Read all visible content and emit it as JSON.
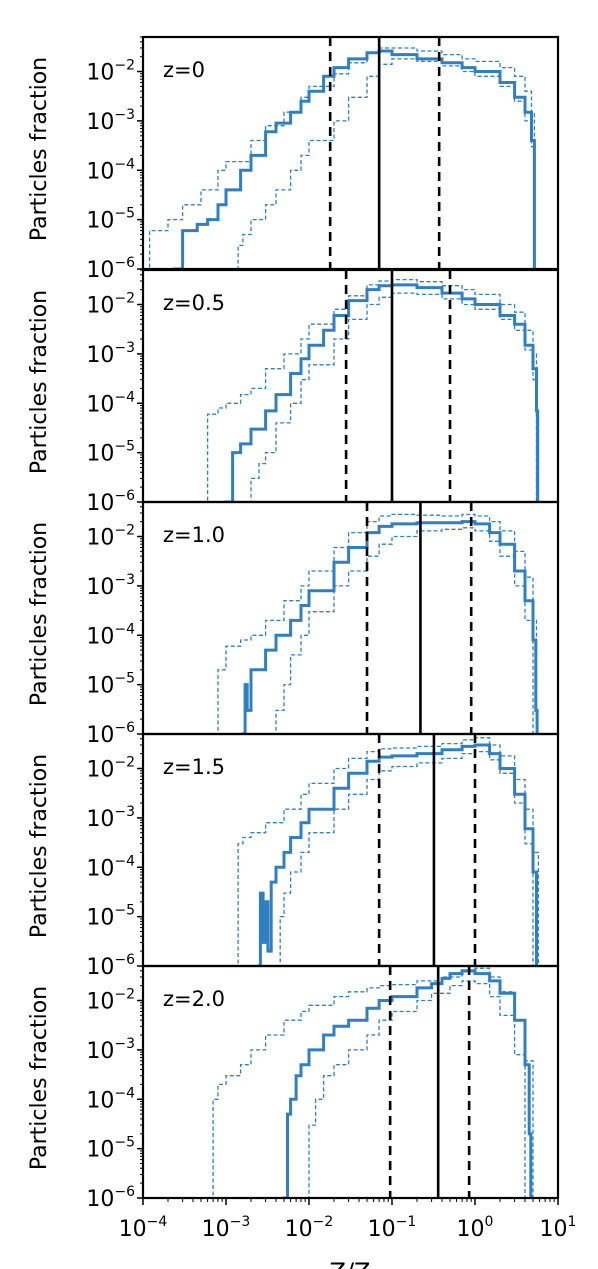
{
  "chart_data": {
    "type": "line",
    "x_scale": "log",
    "y_scale": "log",
    "xlim": [
      0.0001,
      10
    ],
    "ylim": [
      1e-06,
      0.05
    ],
    "xlabel": "Z/Z",
    "ylabel": "Particles fraction",
    "x_ticks": [
      0.0001,
      0.001,
      0.01,
      0.1,
      1,
      10
    ],
    "y_ticks": [
      1e-06,
      1e-05,
      0.0001,
      0.001,
      0.01
    ],
    "x_tick_labels": [
      {
        "base": "10",
        "exp": "−4"
      },
      {
        "base": "10",
        "exp": "−3"
      },
      {
        "base": "10",
        "exp": "−2"
      },
      {
        "base": "10",
        "exp": "−1"
      },
      {
        "base": "10",
        "exp": "0"
      },
      {
        "base": "10",
        "exp": "1"
      }
    ],
    "y_tick_labels": [
      {
        "base": "10",
        "exp": "−6"
      },
      {
        "base": "10",
        "exp": "−5"
      },
      {
        "base": "10",
        "exp": "−4"
      },
      {
        "base": "10",
        "exp": "−3"
      },
      {
        "base": "10",
        "exp": "−2"
      }
    ],
    "line_color": "#2f7fc1",
    "marker_color": "#000000",
    "panels": [
      {
        "label": "z=0",
        "median": 0.07,
        "p16": 0.018,
        "p84": 0.37,
        "series": [
          {
            "style": "solid",
            "x": [
              0.0001,
              0.00024,
              0.0003,
              0.00045,
              0.0006,
              0.0008,
              0.001,
              0.0015,
              0.002,
              0.003,
              0.004,
              0.006,
              0.008,
              0.01,
              0.015,
              0.02,
              0.03,
              0.05,
              0.07,
              0.1,
              0.2,
              0.4,
              0.7,
              1,
              2,
              3,
              4,
              4.8,
              5.2,
              5.3
            ],
            "y": [
              null,
              1e-06,
              6e-06,
              8e-06,
              1e-05,
              2e-05,
              4e-05,
              0.0001,
              0.0002,
              0.0006,
              0.0009,
              0.0015,
              0.0025,
              0.004,
              0.008,
              0.012,
              0.018,
              0.024,
              0.026,
              0.022,
              0.018,
              0.015,
              0.012,
              0.01,
              0.006,
              0.003,
              0.0015,
              0.0004,
              1e-06,
              null
            ]
          },
          {
            "style": "dashed",
            "x": [
              0.0001,
              0.00012,
              0.0002,
              0.0003,
              0.0005,
              0.0008,
              0.001,
              0.002,
              0.003,
              0.005,
              0.008,
              0.01,
              0.02,
              0.03,
              0.05,
              0.07,
              0.1,
              0.2,
              0.4,
              0.7,
              1,
              2,
              3,
              4,
              4.8,
              5.2
            ],
            "y": [
              1e-06,
              6e-06,
              1e-05,
              2e-05,
              4e-05,
              0.0001,
              0.00015,
              0.0004,
              0.0008,
              0.0015,
              0.003,
              0.005,
              0.009,
              0.015,
              0.024,
              0.03,
              0.03,
              0.026,
              0.022,
              0.018,
              0.016,
              0.012,
              0.008,
              0.004,
              0.0015,
              1e-06
            ]
          },
          {
            "style": "dashed",
            "x": [
              0.0013,
              0.0014,
              0.0016,
              0.002,
              0.003,
              0.004,
              0.006,
              0.008,
              0.01,
              0.02,
              0.03,
              0.05,
              0.07,
              0.1,
              0.2,
              0.4,
              0.7,
              1,
              2,
              3,
              4,
              4.8,
              5.2
            ],
            "y": [
              1e-06,
              3e-06,
              5e-06,
              1e-05,
              2e-05,
              4e-05,
              0.0001,
              0.0002,
              0.0004,
              0.001,
              0.003,
              0.008,
              0.014,
              0.018,
              0.016,
              0.013,
              0.01,
              0.008,
              0.005,
              0.0025,
              0.001,
              0.0003,
              1e-06
            ]
          }
        ]
      },
      {
        "label": "z=0.5",
        "median": 0.1,
        "p16": 0.028,
        "p84": 0.5,
        "series": [
          {
            "style": "solid",
            "x": [
              0.001,
              0.0012,
              0.0015,
              0.002,
              0.003,
              0.004,
              0.006,
              0.008,
              0.01,
              0.015,
              0.02,
              0.03,
              0.05,
              0.07,
              0.1,
              0.2,
              0.4,
              0.7,
              1,
              2,
              3,
              4,
              5,
              5.5,
              5.7
            ],
            "y": [
              1e-06,
              1e-05,
              1.5e-05,
              3e-05,
              7e-05,
              0.00015,
              0.0004,
              0.0008,
              0.0015,
              0.003,
              0.006,
              0.012,
              0.02,
              0.024,
              0.025,
              0.022,
              0.017,
              0.013,
              0.01,
              0.006,
              0.004,
              0.0015,
              0.0005,
              7e-05,
              1e-06
            ]
          },
          {
            "style": "dashed",
            "x": [
              0.0005,
              0.0006,
              0.0008,
              0.001,
              0.0015,
              0.002,
              0.003,
              0.005,
              0.008,
              0.01,
              0.02,
              0.03,
              0.05,
              0.07,
              0.1,
              0.2,
              0.4,
              0.7,
              1,
              2,
              3,
              4,
              5,
              5.5
            ],
            "y": [
              1e-06,
              6e-05,
              8e-05,
              0.0001,
              0.00015,
              0.0002,
              0.0005,
              0.001,
              0.002,
              0.004,
              0.008,
              0.015,
              0.025,
              0.03,
              0.032,
              0.029,
              0.024,
              0.02,
              0.016,
              0.01,
              0.007,
              0.003,
              0.001,
              1e-06
            ]
          },
          {
            "style": "dashed",
            "x": [
              0.0018,
              0.002,
              0.0025,
              0.003,
              0.004,
              0.006,
              0.008,
              0.01,
              0.02,
              0.03,
              0.05,
              0.07,
              0.1,
              0.2,
              0.4,
              0.7,
              1,
              2,
              3,
              4,
              5,
              5.5
            ],
            "y": [
              1e-06,
              3e-06,
              6e-06,
              1e-05,
              4e-05,
              0.0001,
              0.0003,
              0.0006,
              0.002,
              0.005,
              0.01,
              0.014,
              0.017,
              0.016,
              0.013,
              0.01,
              0.008,
              0.005,
              0.003,
              0.0012,
              0.0003,
              1e-06
            ]
          }
        ]
      },
      {
        "label": "z=1.0",
        "median": 0.22,
        "p16": 0.05,
        "p84": 0.9,
        "series": [
          {
            "style": "solid",
            "x": [
              0.0016,
              0.0017,
              0.0018,
              0.002,
              0.003,
              0.004,
              0.006,
              0.008,
              0.01,
              0.02,
              0.03,
              0.05,
              0.07,
              0.1,
              0.2,
              0.4,
              0.7,
              1,
              1.5,
              2,
              3,
              4,
              5,
              5.4,
              5.6
            ],
            "y": [
              1e-06,
              1e-05,
              3e-06,
              2e-05,
              5e-05,
              0.0001,
              0.0002,
              0.0004,
              0.0008,
              0.003,
              0.006,
              0.012,
              0.016,
              0.018,
              0.019,
              0.019,
              0.02,
              0.018,
              0.012,
              0.007,
              0.002,
              0.0005,
              8e-05,
              3e-06,
              1e-06
            ]
          },
          {
            "style": "dashed",
            "x": [
              0.0007,
              0.0008,
              0.001,
              0.0015,
              0.002,
              0.003,
              0.005,
              0.008,
              0.01,
              0.02,
              0.03,
              0.05,
              0.07,
              0.1,
              0.2,
              0.4,
              0.7,
              1,
              1.5,
              2,
              3,
              4,
              5,
              5.5
            ],
            "y": [
              1e-06,
              2e-05,
              6e-05,
              8e-05,
              0.0001,
              0.0002,
              0.0005,
              0.001,
              0.002,
              0.006,
              0.012,
              0.02,
              0.026,
              0.028,
              0.027,
              0.026,
              0.028,
              0.026,
              0.02,
              0.013,
              0.005,
              0.0015,
              0.0002,
              1e-06
            ]
          },
          {
            "style": "dashed",
            "x": [
              0.0035,
              0.004,
              0.005,
              0.006,
              0.008,
              0.01,
              0.02,
              0.03,
              0.05,
              0.07,
              0.1,
              0.2,
              0.4,
              0.7,
              1,
              1.5,
              2,
              3,
              4,
              5
            ],
            "y": [
              1e-06,
              3e-06,
              1e-05,
              4e-05,
              0.0001,
              0.0003,
              0.001,
              0.002,
              0.004,
              0.007,
              0.01,
              0.013,
              0.014,
              0.015,
              0.013,
              0.008,
              0.004,
              0.001,
              0.0002,
              1e-06
            ]
          }
        ]
      },
      {
        "label": "z=1.5",
        "median": 0.32,
        "p16": 0.07,
        "p84": 1.0,
        "series": [
          {
            "style": "solid",
            "x": [
              0.0025,
              0.0026,
              0.0028,
              0.003,
              0.0032,
              0.0035,
              0.004,
              0.005,
              0.006,
              0.008,
              0.01,
              0.02,
              0.03,
              0.05,
              0.07,
              0.1,
              0.2,
              0.4,
              0.7,
              1,
              1.5,
              2,
              3,
              4,
              5,
              5.5
            ],
            "y": [
              1e-06,
              3e-05,
              3e-06,
              2e-05,
              2e-06,
              5e-05,
              0.0001,
              0.0002,
              0.0004,
              0.0008,
              0.0015,
              0.004,
              0.008,
              0.014,
              0.017,
              0.018,
              0.02,
              0.024,
              0.028,
              0.03,
              0.02,
              0.01,
              0.003,
              0.0006,
              8e-05,
              1e-06
            ]
          },
          {
            "style": "dashed",
            "x": [
              0.0012,
              0.0014,
              0.0016,
              0.002,
              0.003,
              0.005,
              0.008,
              0.01,
              0.02,
              0.03,
              0.05,
              0.07,
              0.1,
              0.2,
              0.4,
              0.7,
              1,
              1.5,
              2,
              3,
              4,
              5,
              5.8
            ],
            "y": [
              1e-06,
              0.0003,
              0.0004,
              0.0005,
              0.0008,
              0.0015,
              0.003,
              0.005,
              0.01,
              0.016,
              0.022,
              0.025,
              0.026,
              0.028,
              0.032,
              0.038,
              0.042,
              0.03,
              0.018,
              0.006,
              0.0015,
              0.0002,
              1e-06
            ]
          },
          {
            "style": "dashed",
            "x": [
              0.004,
              0.0045,
              0.005,
              0.006,
              0.008,
              0.01,
              0.02,
              0.03,
              0.05,
              0.07,
              0.1,
              0.2,
              0.4,
              0.7,
              1,
              1.5,
              2,
              3,
              4,
              5
            ],
            "y": [
              1e-06,
              1e-05,
              3e-05,
              8e-05,
              0.0002,
              0.0005,
              0.0015,
              0.003,
              0.006,
              0.009,
              0.011,
              0.013,
              0.016,
              0.02,
              0.022,
              0.015,
              0.008,
              0.002,
              0.0003,
              1e-06
            ]
          }
        ]
      },
      {
        "label": "z=2.0",
        "median": 0.36,
        "p16": 0.095,
        "p84": 0.85,
        "series": [
          {
            "style": "solid",
            "x": [
              0.005,
              0.0055,
              0.006,
              0.007,
              0.008,
              0.01,
              0.015,
              0.02,
              0.03,
              0.05,
              0.07,
              0.1,
              0.2,
              0.3,
              0.4,
              0.5,
              0.7,
              1,
              1.5,
              2,
              3,
              4,
              4.5,
              4.7
            ],
            "y": [
              1e-06,
              5e-05,
              0.0001,
              0.0003,
              0.0005,
              0.001,
              0.002,
              0.003,
              0.004,
              0.007,
              0.01,
              0.012,
              0.018,
              0.022,
              0.028,
              0.035,
              0.04,
              0.035,
              0.025,
              0.014,
              0.004,
              0.0005,
              2e-05,
              1e-06
            ]
          },
          {
            "style": "dashed",
            "x": [
              0.0006,
              0.0007,
              0.0008,
              0.001,
              0.0015,
              0.002,
              0.003,
              0.005,
              0.008,
              0.01,
              0.02,
              0.03,
              0.05,
              0.07,
              0.1,
              0.2,
              0.4,
              0.7,
              1,
              1.5,
              2,
              3,
              4,
              5
            ],
            "y": [
              1e-06,
              0.0001,
              0.0002,
              0.0003,
              0.0005,
              0.001,
              0.002,
              0.004,
              0.006,
              0.008,
              0.012,
              0.015,
              0.018,
              0.02,
              0.021,
              0.025,
              0.03,
              0.038,
              0.045,
              0.03,
              0.015,
              0.004,
              0.0006,
              1e-06
            ]
          },
          {
            "style": "dashed",
            "x": [
              0.009,
              0.01,
              0.012,
              0.015,
              0.02,
              0.03,
              0.05,
              0.07,
              0.1,
              0.2,
              0.3,
              0.5,
              0.7,
              1,
              1.5,
              2,
              3,
              4
            ],
            "y": [
              1e-06,
              3e-05,
              0.0001,
              0.0003,
              0.0005,
              0.001,
              0.002,
              0.004,
              0.006,
              0.01,
              0.014,
              0.02,
              0.025,
              0.022,
              0.012,
              0.005,
              0.0008,
              1e-06
            ]
          }
        ]
      }
    ]
  }
}
